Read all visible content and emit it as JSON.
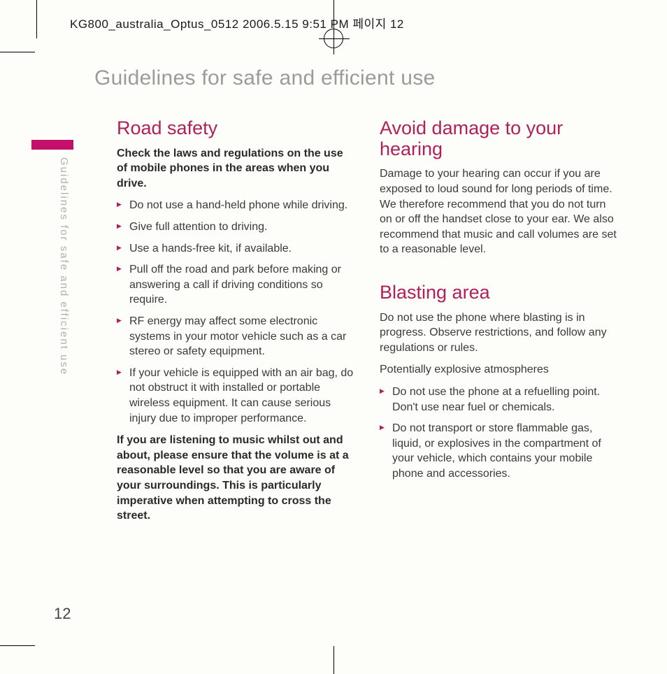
{
  "header_stamp": "KG800_australia_Optus_0512  2006.5.15 9:51 PM  페이지 12",
  "crop": {},
  "page": {
    "title": "Guidelines for safe and efficient use",
    "side_label": "Guidelines for safe and efficient use",
    "number": "12",
    "col_left": {
      "road_safety": {
        "heading": "Road safety",
        "lead": "Check the laws and regulations on the use of mobile phones in the areas when you drive.",
        "items": [
          "Do not use a hand-held phone while driving.",
          "Give full attention to driving.",
          "Use a hands-free kit, if available.",
          "Pull off the road and park before making or answering a call if driving conditions so require.",
          "RF energy may affect some electronic systems in your motor vehicle such as a car stereo or safety equipment.",
          "If your vehicle is equipped with an air bag, do not obstruct it with installed or portable wireless equipment. It can cause serious injury due to improper performance."
        ],
        "footer_bold": "If you are listening to music whilst out and about, please ensure that the volume is at a reasonable level so that you are aware of your surroundings.  This is particularly imperative when attempting to cross the street."
      }
    },
    "col_right": {
      "hearing": {
        "heading": "Avoid damage to your hearing",
        "body": "Damage to your hearing can occur if you are exposed to loud sound for long periods of time.  We therefore recommend that you do not turn on or off the handset close to your ear.  We also recommend that music and call volumes are set to a reasonable level."
      },
      "blasting": {
        "heading": "Blasting area",
        "body1": "Do not use the phone where blasting is in progress. Observe restrictions, and follow any regulations or rules.",
        "body2": "Potentially explosive atmospheres",
        "items": [
          "Do not use the phone at a refuelling point. Don't use near fuel or chemicals.",
          "Do not transport or store flammable gas, liquid, or explosives in the compartment of your vehicle, which contains your mobile phone and accessories."
        ]
      }
    }
  }
}
